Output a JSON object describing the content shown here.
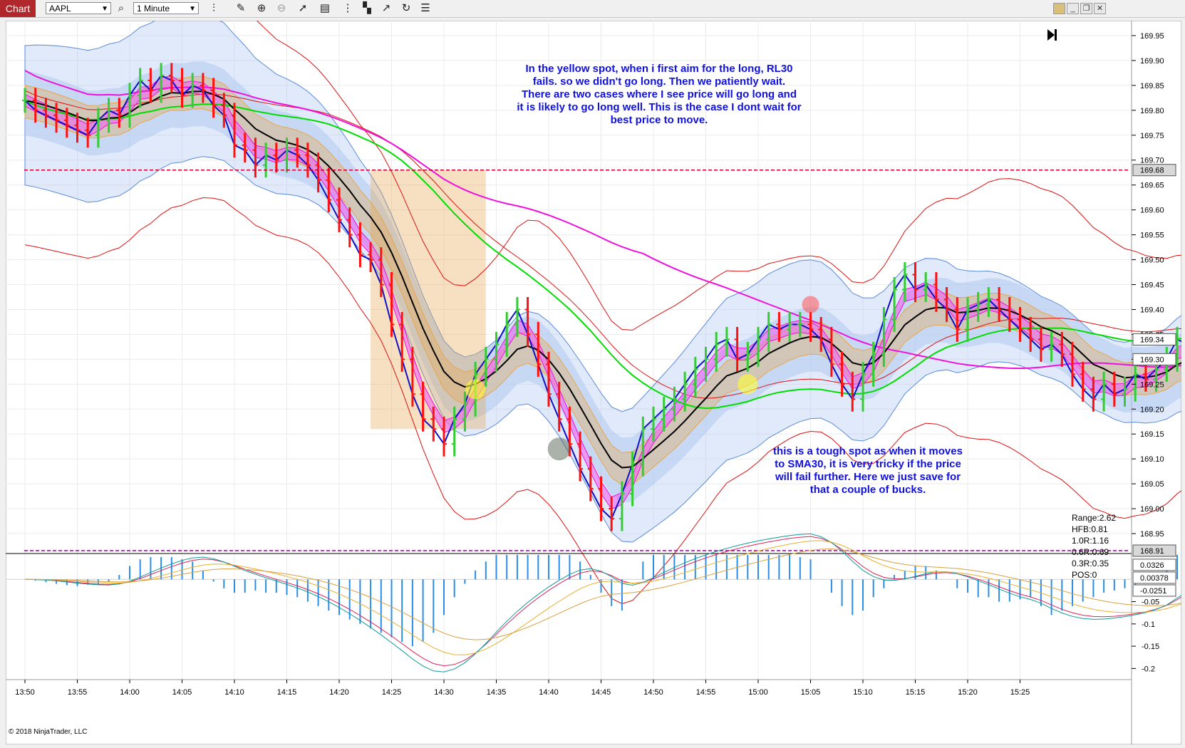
{
  "toolbar": {
    "tab_label": "Chart",
    "instrument": "AAPL",
    "interval": "1 Minute",
    "icons": [
      "search-icon",
      "pencil-icon",
      "zoom-in-icon",
      "zoom-out-icon",
      "pointer-icon",
      "data-box-icon",
      "bar-spacing-icon",
      "chart-style-icon",
      "drawing-tool-icon",
      "refresh-icon",
      "properties-icon"
    ],
    "window_buttons": [
      "color-swatch",
      "minimize",
      "restore",
      "close"
    ]
  },
  "copyright": "© 2018 NinjaTrader, LLC",
  "annotations": {
    "top_note": [
      "In the yellow spot, when i first aim for the long, RL30",
      "fails. so we didn't go long. Then we patiently wait.",
      "There are two cases where I see price will go long and",
      "it is likely to go long well. This is the case I dont wait for",
      "best price to move."
    ],
    "bottom_note": [
      "this is a tough spot as when it moves",
      "to SMA30, it is very tricky if the price",
      "will fail further. Here we just save for",
      "that a couple of bucks."
    ],
    "stats": [
      "Range:2.62",
      "HFB:0.81",
      "1.0R:1.16",
      "0.6R:0.69",
      "0.3R:0.35",
      "POS:0"
    ]
  },
  "colors": {
    "up_bar": "#33cc33",
    "down_bar": "#ff1111",
    "blue_line": "#1010c8",
    "black_line": "#000000",
    "green_line": "#00dd00",
    "magenta_line": "#ee11dd",
    "red_line": "#dd1111",
    "band_fill": "#a9c4f0",
    "orange_band": "#e8a64a",
    "annotation_text": "#1111dd",
    "level_line": "#c00030",
    "low_line": "#8a008a",
    "macd_hist": "#2a8ee8"
  },
  "chart_data": {
    "type": "candlestick",
    "instrument": "AAPL",
    "interval": "1 Minute",
    "x_ticks": [
      "13:50",
      "13:55",
      "14:00",
      "14:05",
      "14:10",
      "14:15",
      "14:20",
      "14:25",
      "14:30",
      "14:35",
      "14:40",
      "14:45",
      "14:50",
      "14:55",
      "15:00",
      "15:05",
      "15:10",
      "15:15",
      "15:20",
      "15:25"
    ],
    "y_ticks": [
      "169.95",
      "169.90",
      "169.85",
      "169.80",
      "169.75",
      "169.70",
      "169.65",
      "169.60",
      "169.55",
      "169.50",
      "169.45",
      "169.40",
      "169.35",
      "169.30",
      "169.25",
      "169.20",
      "169.15",
      "169.10",
      "169.05",
      "169.00",
      "168.95"
    ],
    "ylim": [
      168.91,
      169.98
    ],
    "price_labels": [
      {
        "value": 169.68,
        "text": "169.68",
        "style": "dark"
      },
      {
        "value": 169.34,
        "text": "169.34",
        "style": "light"
      },
      {
        "value": 169.3,
        "text": "169.30",
        "style": "light"
      },
      {
        "value": 168.91,
        "text": "168.91",
        "style": "dark"
      }
    ],
    "levels": {
      "upper_dashed": 169.68,
      "lower_dashed": 168.91
    },
    "closes": [
      169.82,
      169.8,
      169.79,
      169.78,
      169.77,
      169.76,
      169.75,
      169.78,
      169.8,
      169.79,
      169.83,
      169.86,
      169.84,
      169.87,
      169.86,
      169.83,
      169.85,
      169.84,
      169.81,
      169.79,
      169.73,
      169.72,
      169.69,
      169.71,
      169.7,
      169.72,
      169.71,
      169.69,
      169.66,
      169.62,
      169.58,
      169.55,
      169.51,
      169.5,
      169.45,
      169.37,
      169.3,
      169.23,
      169.18,
      169.16,
      169.13,
      169.18,
      169.21,
      169.27,
      169.3,
      169.33,
      169.37,
      169.4,
      169.35,
      169.29,
      169.23,
      169.18,
      169.13,
      169.08,
      169.04,
      169.0,
      168.98,
      169.03,
      169.09,
      169.16,
      169.18,
      169.2,
      169.22,
      169.25,
      169.28,
      169.3,
      169.33,
      169.34,
      169.3,
      169.31,
      169.34,
      169.37,
      169.36,
      169.37,
      169.37,
      169.36,
      169.34,
      169.29,
      169.25,
      169.22,
      169.27,
      169.31,
      169.38,
      169.44,
      169.47,
      169.44,
      169.45,
      169.42,
      169.4,
      169.36,
      169.4,
      169.41,
      169.42,
      169.4,
      169.38,
      169.36,
      169.34,
      169.32,
      169.33,
      169.31,
      169.27,
      169.24,
      169.22,
      169.25,
      169.23,
      169.24,
      169.27,
      169.26,
      169.28,
      169.3,
      169.34,
      169.33,
      169.3
    ],
    "y2_ticks": [
      "-0.05",
      "-0.1",
      "-0.15",
      "-0.2"
    ],
    "y2lim": [
      -0.225,
      0.058
    ],
    "oscillator_labels": [
      "0.0326",
      "0.00378",
      "-0.0251"
    ],
    "macd_histogram": [
      0.0,
      -0.003,
      -0.006,
      -0.01,
      -0.013,
      -0.015,
      -0.012,
      -0.01,
      -0.005,
      0.01,
      0.03,
      0.045,
      0.05,
      0.05,
      0.05,
      0.045,
      0.04,
      0.02,
      -0.005,
      -0.02,
      -0.03,
      -0.03,
      -0.025,
      -0.03,
      -0.03,
      -0.035,
      -0.04,
      -0.05,
      -0.06,
      -0.07,
      -0.08,
      -0.09,
      -0.1,
      -0.11,
      -0.12,
      -0.13,
      -0.14,
      -0.15,
      -0.14,
      -0.12,
      -0.08,
      -0.04,
      -0.01,
      0.02,
      0.04,
      0.055,
      0.055,
      0.055,
      0.055,
      0.055,
      0.055,
      0.055,
      0.055,
      0.04,
      0.01,
      -0.03,
      -0.06,
      -0.07,
      0.0,
      0.04,
      0.055,
      0.055,
      0.055,
      0.055,
      0.055,
      0.055,
      0.055,
      0.055,
      0.055,
      0.055,
      0.055,
      0.055,
      0.055,
      0.055,
      0.05,
      0.045,
      0.0,
      -0.03,
      -0.06,
      -0.08,
      -0.07,
      -0.04,
      -0.02,
      0.01,
      0.02,
      0.03,
      0.03,
      0.02,
      0.0,
      -0.02,
      -0.03,
      -0.04,
      -0.04,
      -0.05,
      -0.05,
      -0.045,
      -0.04,
      -0.06,
      -0.08,
      -0.07,
      -0.06,
      -0.05,
      -0.04,
      -0.03,
      -0.025,
      -0.02,
      -0.015,
      -0.01,
      0.005,
      0.02,
      0.055,
      0.05,
      0.03
    ]
  }
}
